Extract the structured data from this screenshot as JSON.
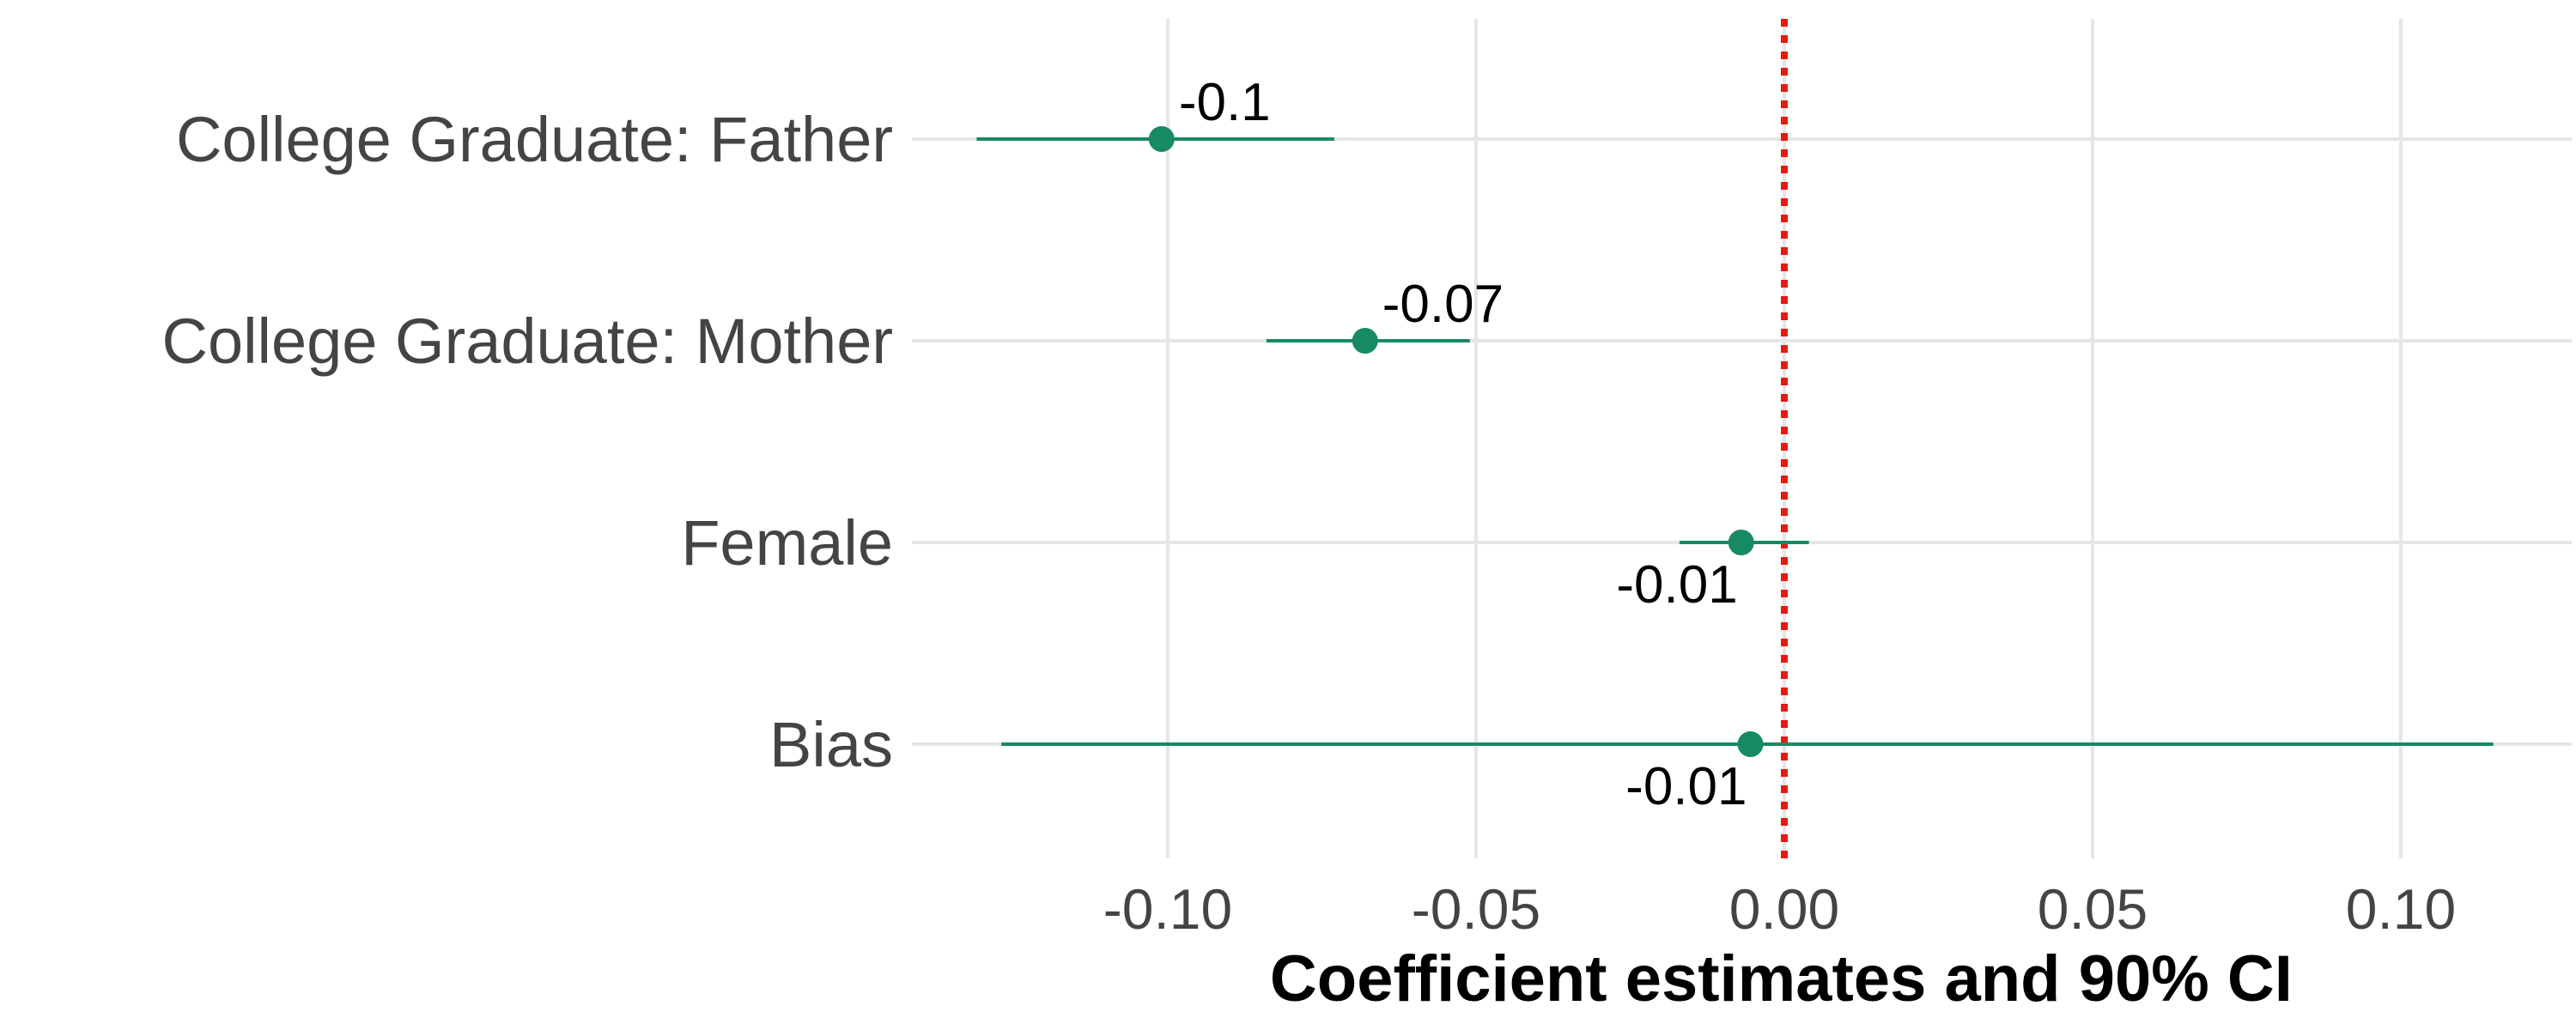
{
  "chart_data": {
    "type": "scatter",
    "title": "",
    "xlabel": "Coefficient estimates and 90% CI",
    "ylabel": "",
    "xlim": [
      -0.14,
      0.13
    ],
    "xticks": [
      -0.1,
      -0.05,
      0.0,
      0.05,
      0.1
    ],
    "xtick_labels": [
      "-0.10",
      "-0.05",
      "0.00",
      "0.05",
      "0.10"
    ],
    "grid": true,
    "legend": "none",
    "reference_line": {
      "x": 0.0,
      "style": "dotted",
      "color": "#e8190f"
    },
    "point_color": "#178a63",
    "series": [
      {
        "points": [
          {
            "label": "College Graduate: Father",
            "estimate": -0.101,
            "ci_low": -0.131,
            "ci_high": -0.073,
            "value_label": "-0.1",
            "label_position": "above"
          },
          {
            "label": "College Graduate: Mother",
            "estimate": -0.068,
            "ci_low": -0.084,
            "ci_high": -0.051,
            "value_label": "-0.07",
            "label_position": "above"
          },
          {
            "label": "Female",
            "estimate": -0.007,
            "ci_low": -0.017,
            "ci_high": 0.004,
            "value_label": "-0.01",
            "label_position": "below"
          },
          {
            "label": "Bias",
            "estimate": -0.0055,
            "ci_low": -0.127,
            "ci_high": 0.115,
            "value_label": "-0.01",
            "label_position": "below"
          }
        ]
      }
    ]
  }
}
